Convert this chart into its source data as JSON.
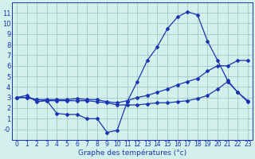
{
  "xlabel": "Graphe des températures (°c)",
  "xlim": [
    -0.5,
    23.5
  ],
  "ylim": [
    -1.0,
    12.0
  ],
  "yticks": [
    0,
    1,
    2,
    3,
    4,
    5,
    6,
    7,
    8,
    9,
    10,
    11
  ],
  "xticks": [
    0,
    1,
    2,
    3,
    4,
    5,
    6,
    7,
    8,
    9,
    10,
    11,
    12,
    13,
    14,
    15,
    16,
    17,
    18,
    19,
    20,
    21,
    22,
    23
  ],
  "bg_color": "#d4f0ed",
  "grid_color": "#a0c8c8",
  "line_color": "#1a35b0",
  "line1_x": [
    0,
    1,
    2,
    3,
    4,
    5,
    6,
    7,
    8,
    9,
    10,
    11,
    12,
    13,
    14,
    15,
    16,
    17,
    18,
    19,
    20,
    21,
    22,
    23
  ],
  "line1_y": [
    3.0,
    3.2,
    2.6,
    2.7,
    1.5,
    1.4,
    1.4,
    1.0,
    1.0,
    -0.3,
    -0.1,
    2.6,
    4.5,
    6.5,
    7.8,
    9.5,
    10.6,
    11.1,
    10.8,
    8.3,
    6.5,
    4.6,
    3.5,
    2.6
  ],
  "line2_x": [
    0,
    1,
    2,
    3,
    4,
    5,
    6,
    7,
    8,
    9,
    10,
    11,
    12,
    13,
    14,
    15,
    16,
    17,
    18,
    19,
    20,
    21,
    22,
    23
  ],
  "line2_y": [
    3.0,
    3.0,
    2.8,
    2.8,
    2.8,
    2.8,
    2.9,
    2.8,
    2.8,
    2.6,
    2.5,
    2.7,
    3.0,
    3.2,
    3.5,
    3.8,
    4.2,
    4.5,
    4.8,
    5.5,
    6.0,
    6.0,
    6.5,
    6.5
  ],
  "line3_x": [
    0,
    1,
    2,
    3,
    4,
    5,
    6,
    7,
    8,
    9,
    10,
    11,
    12,
    13,
    14,
    15,
    16,
    17,
    18,
    19,
    20,
    21,
    22,
    23
  ],
  "line3_y": [
    3.0,
    3.0,
    2.8,
    2.7,
    2.7,
    2.7,
    2.7,
    2.7,
    2.6,
    2.5,
    2.3,
    2.3,
    2.3,
    2.4,
    2.5,
    2.5,
    2.6,
    2.7,
    2.9,
    3.2,
    3.8,
    4.5,
    3.5,
    2.7
  ],
  "marker_size": 2.0,
  "line_width": 0.9,
  "tick_fontsize": 5.5,
  "xlabel_fontsize": 6.5
}
